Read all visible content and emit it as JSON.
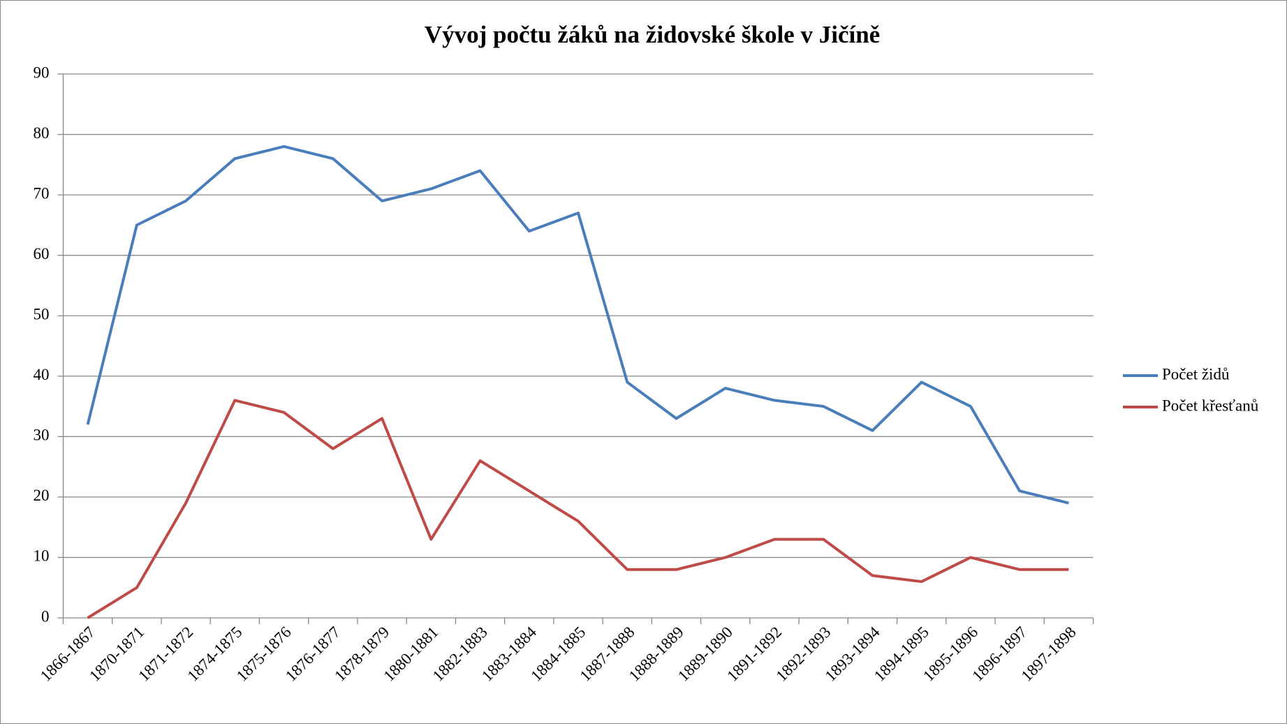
{
  "chart_data": {
    "type": "line",
    "title": "Vývoj počtu žáků na židovské škole v Jičíně",
    "categories": [
      "1866-1867",
      "1870-1871",
      "1871-1872",
      "1874-1875",
      "1875-1876",
      "1876-1877",
      "1878-1879",
      "1880-1881",
      "1882-1883",
      "1883-1884",
      "1884-1885",
      "1887-1888",
      "1888-1889",
      "1889-1890",
      "1891-1892",
      "1892-1893",
      "1893-1894",
      "1894-1895",
      "1895-1896",
      "1896-1897",
      "1897-1898"
    ],
    "series": [
      {
        "name": "Počet židů",
        "color": "#4a7ebb",
        "values": [
          32,
          65,
          69,
          76,
          78,
          76,
          69,
          71,
          74,
          64,
          67,
          39,
          33,
          38,
          36,
          35,
          31,
          39,
          35,
          21,
          19
        ]
      },
      {
        "name": "Počet křesťanů",
        "color": "#be4b48",
        "values": [
          0,
          5,
          19,
          36,
          34,
          28,
          33,
          13,
          26,
          21,
          16,
          8,
          8,
          10,
          13,
          13,
          7,
          6,
          10,
          8,
          8
        ]
      }
    ],
    "ylim": [
      0,
      90
    ],
    "yticks": [
      0,
      10,
      20,
      30,
      40,
      50,
      60,
      70,
      80,
      90
    ],
    "grid": true,
    "legend": "right"
  }
}
